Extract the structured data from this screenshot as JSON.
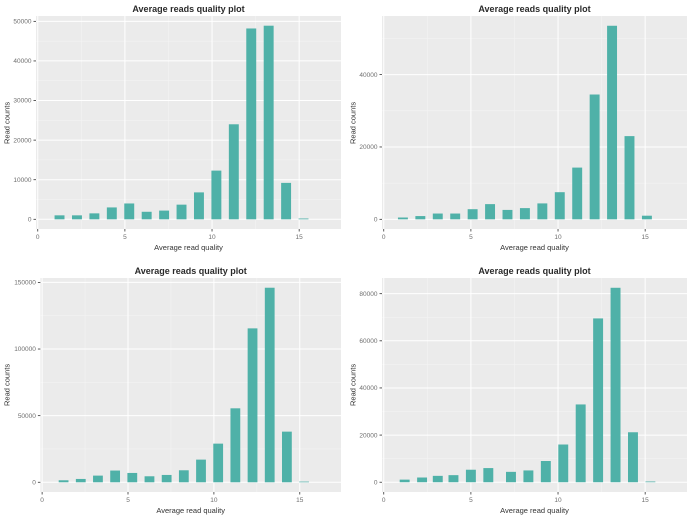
{
  "colors": {
    "bar": "#4FB1A8",
    "panel_bg": "#EBEBEB",
    "grid_major": "#FFFFFF",
    "grid_minor": "#F5F5F5",
    "tick_mark": "#333333",
    "tick_label": "#6E6E6E",
    "axis_title": "#333333",
    "title": "#2B2B2B",
    "page_bg": "#FFFFFF"
  },
  "layout": {
    "grid": "2x2",
    "legend": "none"
  },
  "chart_data": [
    {
      "position": "top-left",
      "type": "bar",
      "title": "Average reads quality plot",
      "xlabel": "Average read quality",
      "ylabel": "Read counts",
      "x": [
        1.25,
        2.25,
        3.25,
        4.25,
        5.25,
        6.25,
        7.25,
        8.25,
        9.25,
        10.25,
        11.25,
        12.25,
        13.25,
        14.25,
        15.25
      ],
      "values": [
        1000,
        1000,
        1500,
        3000,
        4000,
        1900,
        2200,
        3700,
        6800,
        12300,
        24000,
        48200,
        48900,
        9200,
        200
      ],
      "x_ticks": [
        0,
        5,
        10,
        15
      ],
      "y_ticks": [
        0,
        10000,
        20000,
        30000,
        40000,
        50000
      ],
      "xlim": [
        -0.1,
        17.4
      ],
      "ylim": [
        -2450,
        51350
      ],
      "bar_width": 0.57,
      "grid": true,
      "legend": "none"
    },
    {
      "position": "top-right",
      "type": "bar",
      "title": "Average reads quality plot",
      "xlabel": "Average read quality",
      "ylabel": "Read counts",
      "x": [
        1.1,
        2.1,
        3.1,
        4.1,
        5.1,
        6.1,
        7.1,
        8.1,
        9.1,
        10.1,
        11.1,
        12.1,
        13.1,
        14.1,
        15.1
      ],
      "values": [
        500,
        900,
        1600,
        1600,
        2800,
        4200,
        2600,
        3100,
        4400,
        7500,
        14300,
        34500,
        53500,
        23000,
        1000
      ],
      "x_ticks": [
        0,
        5,
        10,
        15
      ],
      "y_ticks": [
        0,
        20000,
        40000
      ],
      "xlim": [
        -0.1,
        17.4
      ],
      "ylim": [
        -2675,
        56200
      ],
      "bar_width": 0.57,
      "grid": true,
      "legend": "none"
    },
    {
      "position": "bottom-left",
      "type": "bar",
      "title": "Average reads quality plot",
      "xlabel": "Average read quality",
      "ylabel": "Read counts",
      "x": [
        1.25,
        2.25,
        3.25,
        4.25,
        5.25,
        6.25,
        7.25,
        8.25,
        9.25,
        10.25,
        11.25,
        12.25,
        13.25,
        14.25,
        15.25
      ],
      "values": [
        1500,
        2500,
        5000,
        8800,
        7000,
        4500,
        5500,
        9000,
        17000,
        29000,
        55500,
        115500,
        146000,
        38000,
        500
      ],
      "x_ticks": [
        0,
        5,
        10,
        15
      ],
      "y_ticks": [
        0,
        50000,
        100000,
        150000
      ],
      "xlim": [
        -0.1,
        17.4
      ],
      "ylim": [
        -7300,
        153300
      ],
      "bar_width": 0.57,
      "grid": true,
      "legend": "none"
    },
    {
      "position": "bottom-right",
      "type": "bar",
      "title": "Average reads quality plot",
      "xlabel": "Average read quality",
      "ylabel": "Read counts",
      "x": [
        1.2,
        2.2,
        3.1,
        4.0,
        5.0,
        6.0,
        7.3,
        8.3,
        9.3,
        10.3,
        11.3,
        12.3,
        13.3,
        14.3,
        15.3
      ],
      "values": [
        1100,
        2000,
        2700,
        3000,
        5300,
        6000,
        4400,
        5000,
        9000,
        16000,
        33000,
        69500,
        82500,
        21200,
        300
      ],
      "x_ticks": [
        0,
        5,
        10,
        15
      ],
      "y_ticks": [
        0,
        20000,
        40000,
        60000,
        80000
      ],
      "xlim": [
        -0.1,
        17.4
      ],
      "ylim": [
        -4150,
        86650
      ],
      "bar_width": 0.57,
      "grid": true,
      "legend": "none"
    }
  ]
}
